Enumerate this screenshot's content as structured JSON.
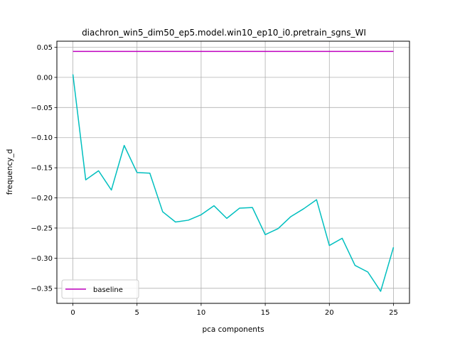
{
  "chart_data": {
    "type": "line",
    "title": "diachron_win5_dim50_ep5.model.win10_ep10_i0.pretrain_sgns_WI",
    "xlabel": "pca components",
    "ylabel": "frequency_d",
    "xlim": [
      -1.25,
      26.25
    ],
    "ylim": [
      -0.375,
      0.06
    ],
    "x_ticks": [
      0,
      5,
      10,
      15,
      20,
      25
    ],
    "y_ticks": [
      0.05,
      0.0,
      -0.05,
      -0.1,
      -0.15,
      -0.2,
      -0.25,
      -0.3,
      -0.35
    ],
    "x_tick_labels": [
      "0",
      "5",
      "10",
      "15",
      "20",
      "25"
    ],
    "y_tick_labels": [
      "0.05",
      "0.00",
      "−0.05",
      "−0.10",
      "−0.15",
      "−0.20",
      "−0.25",
      "−0.30",
      "−0.35"
    ],
    "grid": true,
    "legend_position": "lower-left",
    "series": [
      {
        "name": "baseline",
        "color": "#bf00bf",
        "x": [
          0,
          25
        ],
        "y": [
          0.043,
          0.043
        ]
      },
      {
        "color": "#00bfbf",
        "x": [
          0,
          1,
          2,
          3,
          4,
          5,
          6,
          7,
          8,
          9,
          10,
          11,
          12,
          13,
          14,
          15,
          16,
          17,
          18,
          19,
          20,
          21,
          22,
          23,
          24,
          25
        ],
        "y": [
          0.005,
          -0.17,
          -0.155,
          -0.187,
          -0.113,
          -0.158,
          -0.159,
          -0.223,
          -0.24,
          -0.237,
          -0.228,
          -0.213,
          -0.234,
          -0.217,
          -0.216,
          -0.261,
          -0.251,
          -0.231,
          -0.218,
          -0.203,
          -0.279,
          -0.267,
          -0.312,
          -0.323,
          -0.355,
          -0.282
        ]
      }
    ]
  }
}
